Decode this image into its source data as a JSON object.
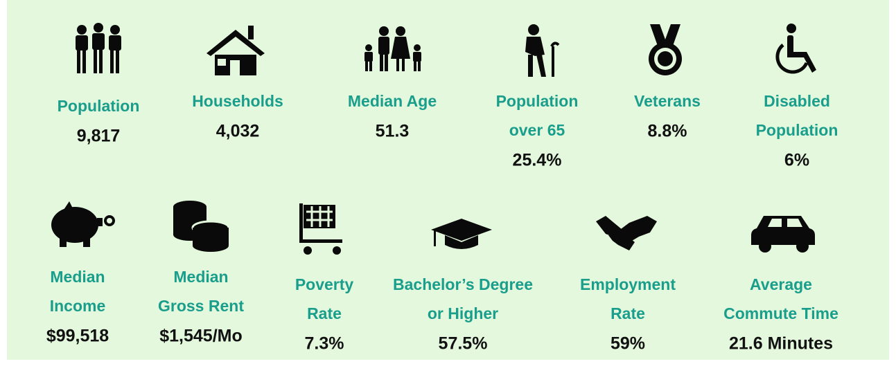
{
  "stats": [
    {
      "label": [
        "Population"
      ],
      "value": "9,817"
    },
    {
      "label": [
        "Households"
      ],
      "value": "4,032"
    },
    {
      "label": [
        "Median Age"
      ],
      "value": "51.3"
    },
    {
      "label": [
        "Population",
        "over 65"
      ],
      "value": "25.4%"
    },
    {
      "label": [
        "Veterans"
      ],
      "value": "8.8%"
    },
    {
      "label": [
        "Disabled",
        "Population"
      ],
      "value": "6%"
    },
    {
      "label": [
        "Median",
        "Income"
      ],
      "value": "$99,518"
    },
    {
      "label": [
        "Median",
        "Gross Rent"
      ],
      "value": "$1,545/Mo"
    },
    {
      "label": [
        "Poverty",
        "Rate"
      ],
      "value": "7.3%"
    },
    {
      "label": [
        "Bachelor’s Degree",
        "or Higher"
      ],
      "value": "57.5%"
    },
    {
      "label": [
        "Employment",
        "Rate"
      ],
      "value": "59%"
    },
    {
      "label": [
        "Average",
        "Commute Time"
      ],
      "value": "21.6 Minutes"
    }
  ]
}
